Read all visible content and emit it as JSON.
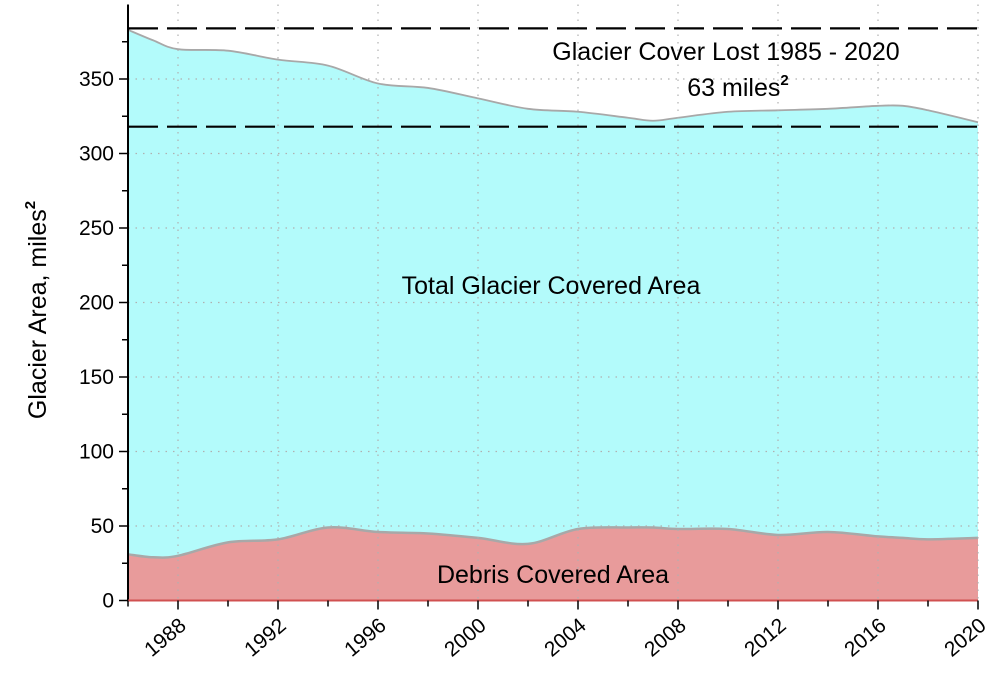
{
  "chart_data": {
    "type": "area",
    "title": "",
    "xlabel": "",
    "ylabel": "Glacier Area, miles",
    "ylabel_superscript": "2",
    "xlim": [
      1986,
      2020
    ],
    "ylim": [
      0,
      400
    ],
    "grid": true,
    "x_ticks": [
      1988,
      1992,
      1996,
      2000,
      2004,
      2008,
      2012,
      2016,
      2020
    ],
    "y_ticks": [
      0,
      50,
      100,
      150,
      200,
      250,
      300,
      350
    ],
    "x": [
      1986,
      1987,
      1988,
      1990,
      1992,
      1994,
      1996,
      1998,
      2000,
      2002,
      2004,
      2006,
      2007,
      2008,
      2010,
      2012,
      2014,
      2016,
      2017,
      2018,
      2020
    ],
    "series": [
      {
        "name": "Total Glacier Covered Area",
        "color": "#b3fbfb",
        "values": [
          383,
          376,
          370,
          369,
          363,
          359,
          347,
          344,
          337,
          330,
          328,
          324,
          322,
          324,
          328,
          329,
          330,
          332,
          332,
          329,
          321
        ]
      },
      {
        "name": "Debris Covered Area",
        "color": "#e89b9b",
        "values": [
          31,
          29,
          30,
          39,
          41,
          49,
          46,
          45,
          42,
          38,
          48,
          49,
          49,
          48,
          48,
          44,
          46,
          43,
          42,
          41,
          42
        ]
      }
    ],
    "reference_lines": [
      {
        "y": 384,
        "style": "dashed"
      },
      {
        "y": 318,
        "style": "dashed"
      }
    ],
    "annotations": {
      "lost_line1": "Glacier Cover Lost 1985 - 2020",
      "lost_line2": "63 miles",
      "lost_superscript": "2",
      "total_label": "Total Glacier Covered Area",
      "debris_label": "Debris Covered Area"
    },
    "colors": {
      "outline": "#a8a8a8",
      "baseline": "#d05050",
      "grid": "#b0b0b0"
    }
  }
}
